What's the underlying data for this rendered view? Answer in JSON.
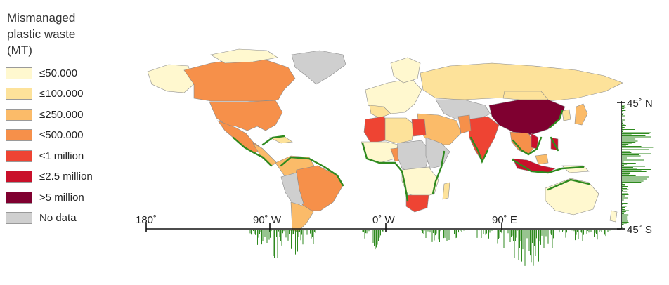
{
  "legend": {
    "title": "Mismanaged\nplastic waste\n(MT)",
    "items": [
      {
        "label": "≤50.000",
        "color": "#fff8cf"
      },
      {
        "label": "≤100.000",
        "color": "#fde29a"
      },
      {
        "label": "≤250.000",
        "color": "#fbbb69"
      },
      {
        "label": "≤500.000",
        "color": "#f6904a"
      },
      {
        "label": "≤1 million",
        "color": "#ee4433"
      },
      {
        "label": "≤2.5 million",
        "color": "#c9102a"
      },
      {
        "label": ">5 million",
        "color": "#7f0030"
      },
      {
        "label": "No data",
        "color": "#cfcfcf"
      }
    ]
  },
  "axes": {
    "x_ticks": [
      "180˚",
      "90˚ W",
      "0˚ W",
      "90˚ E"
    ],
    "y_ticks": [
      "45˚ N",
      "45˚ S"
    ]
  },
  "colors": {
    "coastline_highlight": "#2f8a1f",
    "histogram": "#2f8a1f",
    "axis": "#111111"
  }
}
